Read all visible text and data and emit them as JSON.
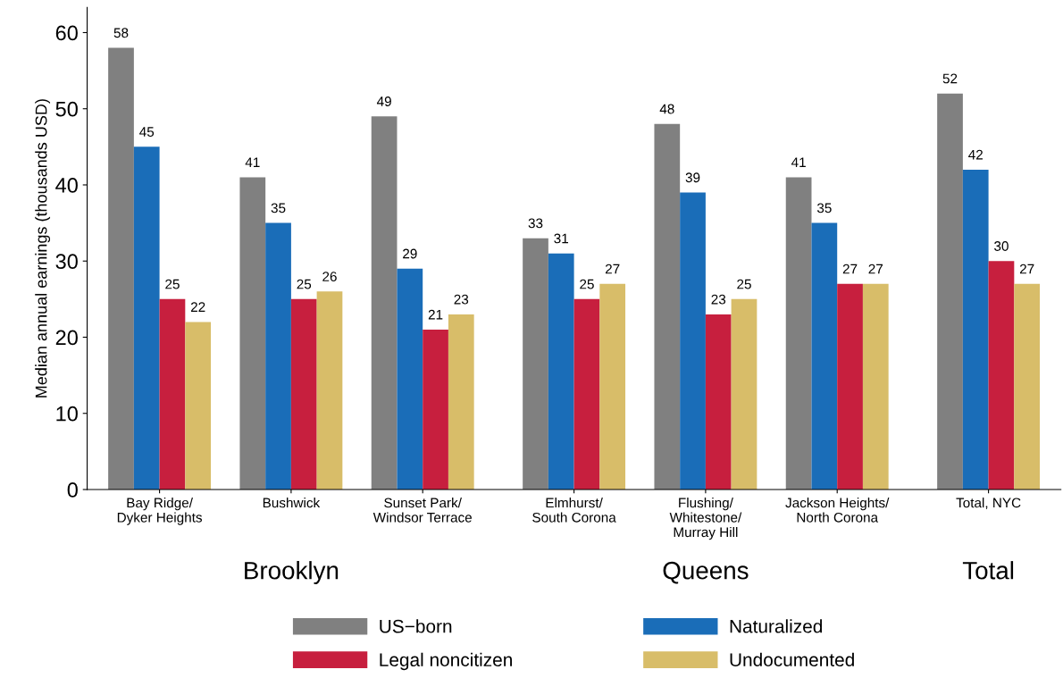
{
  "chart_data": {
    "type": "bar",
    "ylabel": "Median annual earnings (thousands USD)",
    "categories": [
      "Bay Ridge/\nDyker Heights",
      "Bushwick",
      "Sunset Park/\nWindsor Terrace",
      null,
      "Elmhurst/\nSouth Corona",
      "Flushing/\nWhitestone/\nMurray Hill",
      "Jackson Heights/\nNorth Corona",
      null,
      "Total, NYC"
    ],
    "series": [
      {
        "name": "US−born",
        "color": "#808080",
        "values": [
          58,
          41,
          49,
          null,
          33,
          48,
          41,
          null,
          52
        ]
      },
      {
        "name": "Naturalized",
        "color": "#1a6db8",
        "values": [
          45,
          35,
          29,
          null,
          31,
          39,
          35,
          null,
          42
        ]
      },
      {
        "name": "Legal noncitizen",
        "color": "#c71f3e",
        "values": [
          25,
          25,
          21,
          null,
          25,
          23,
          27,
          null,
          30
        ]
      },
      {
        "name": "Undocumented",
        "color": "#d8bd69",
        "values": [
          22,
          26,
          23,
          null,
          27,
          25,
          27,
          null,
          27
        ]
      }
    ],
    "annotations": [
      "Brooklyn",
      "Queens",
      "Total"
    ],
    "ylim": [
      0,
      63.3
    ],
    "yticks": [
      0,
      10,
      20,
      30,
      40,
      50,
      60
    ],
    "data_labels": true,
    "grid": false,
    "legend": "bottom"
  }
}
